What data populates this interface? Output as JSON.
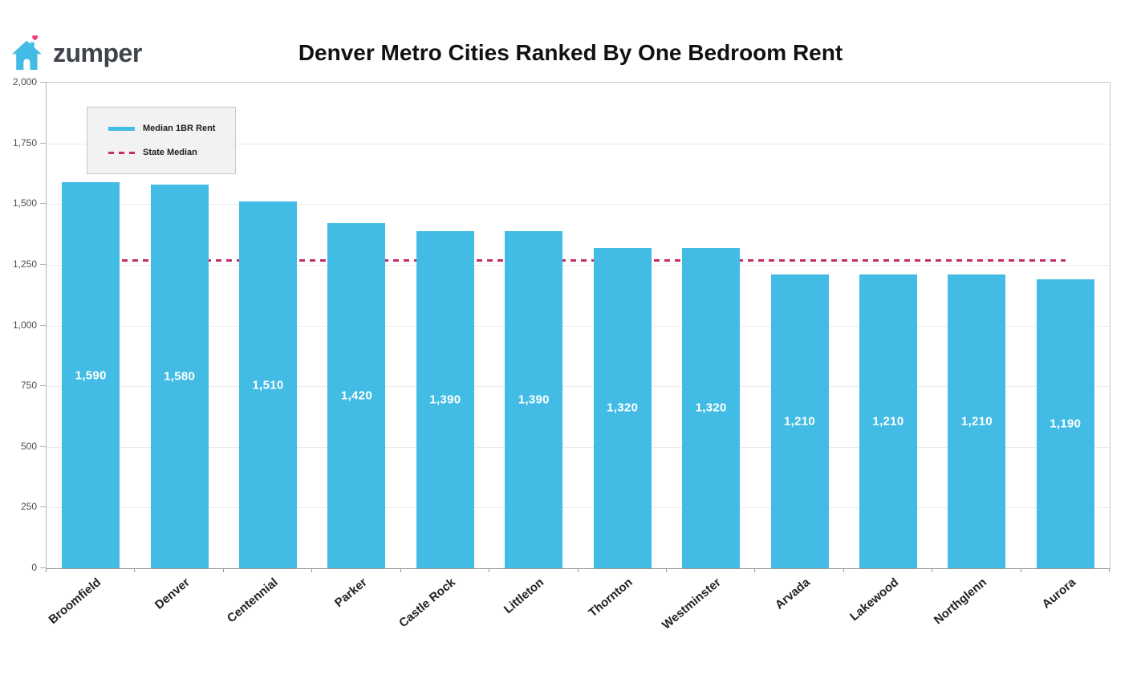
{
  "logo": {
    "text": "zumper",
    "house_color": "#42bce4",
    "heart_color": "#f03e7d",
    "door_color": "#ffffff"
  },
  "header": {
    "title": "Denver Metro Cities Ranked By One Bedroom Rent"
  },
  "legend": {
    "items": [
      {
        "label": "Median 1BR Rent",
        "style": "solid",
        "color": "#42bce4"
      },
      {
        "label": "State Median",
        "style": "dashed",
        "color": "#c42c69"
      }
    ]
  },
  "chart_data": {
    "type": "bar",
    "title": "Denver Metro Cities Ranked By One Bedroom Rent",
    "categories": [
      "Broomfield",
      "Denver",
      "Centennial",
      "Parker",
      "Castle Rock",
      "Littleton",
      "Thornton",
      "Westminster",
      "Arvada",
      "Lakewood",
      "Northglenn",
      "Aurora"
    ],
    "values": [
      1590,
      1580,
      1510,
      1420,
      1390,
      1390,
      1320,
      1320,
      1210,
      1210,
      1210,
      1190
    ],
    "value_labels": [
      "1,590",
      "1,580",
      "1,510",
      "1,420",
      "1,390",
      "1,390",
      "1,320",
      "1,320",
      "1,210",
      "1,210",
      "1,210",
      "1,190"
    ],
    "series": [
      {
        "name": "Median 1BR Rent",
        "values": [
          1590,
          1580,
          1510,
          1420,
          1390,
          1390,
          1320,
          1320,
          1210,
          1210,
          1210,
          1190
        ]
      }
    ],
    "state_median": 1270,
    "xlabel": "",
    "ylabel": "",
    "ylim": [
      0,
      2000
    ],
    "ytick_values": [
      0,
      250,
      500,
      750,
      1000,
      1250,
      1500,
      1750,
      2000
    ],
    "ytick_labels": [
      "0",
      "250",
      "500",
      "750",
      "1,000",
      "1,250",
      "1,500",
      "1,750",
      "2,000"
    ],
    "grid": true,
    "legend_position": "top-left",
    "bar_color": "#42bce4",
    "median_line_color": "#c42c69",
    "value_label_color": "#ffffff"
  }
}
